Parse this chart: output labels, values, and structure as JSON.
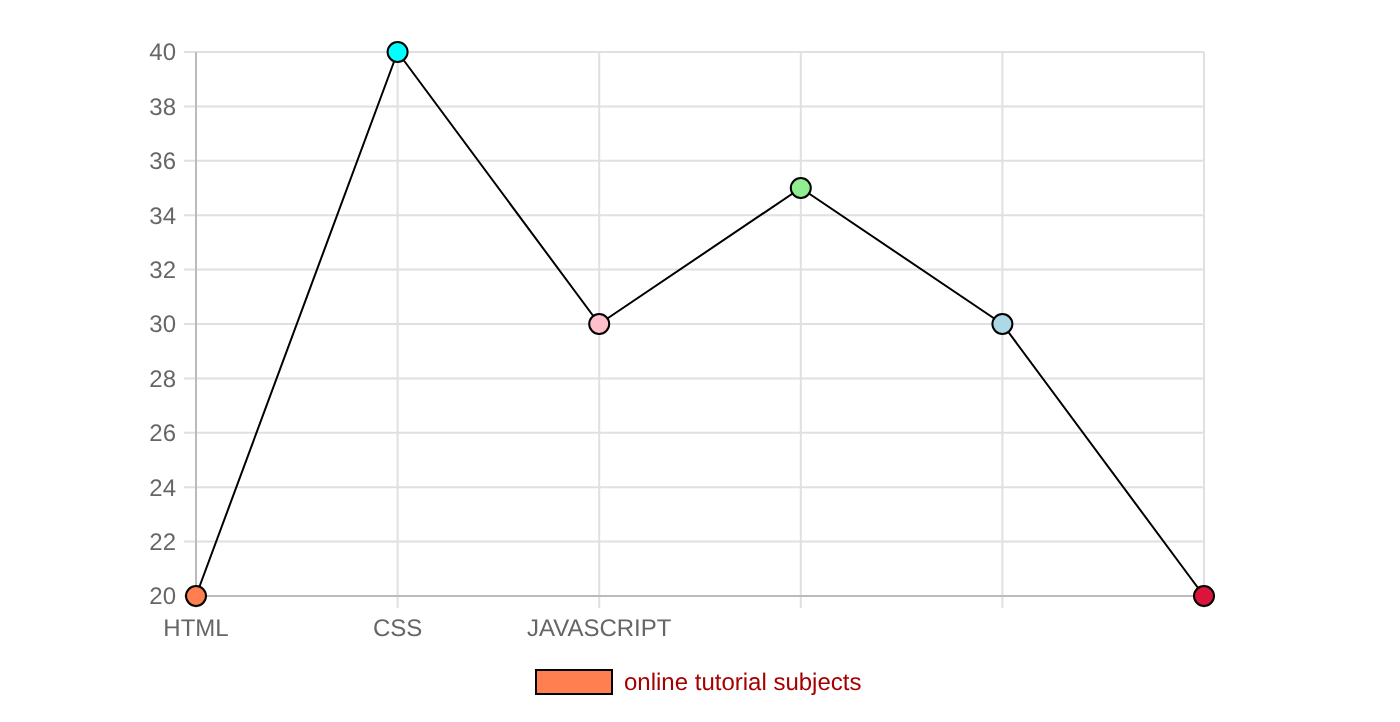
{
  "chart_data": {
    "type": "line",
    "categories": [
      "HTML",
      "CSS",
      "JAVASCRIPT",
      null,
      null,
      null
    ],
    "series": [
      {
        "name": "online tutorial subjects",
        "color": "#000000",
        "colors": [
          "#ff7f50",
          "#00ffff",
          "#ffc0cb",
          "#90ee90",
          "#add8e6",
          "#dc143c"
        ],
        "values": [
          20,
          40,
          30,
          35,
          30,
          20
        ]
      }
    ],
    "ylim": [
      20,
      40
    ],
    "yticks": [
      20,
      22,
      24,
      26,
      28,
      30,
      32,
      34,
      36,
      38,
      40
    ],
    "grid": true,
    "legend": "bottom",
    "marker": "circle"
  }
}
